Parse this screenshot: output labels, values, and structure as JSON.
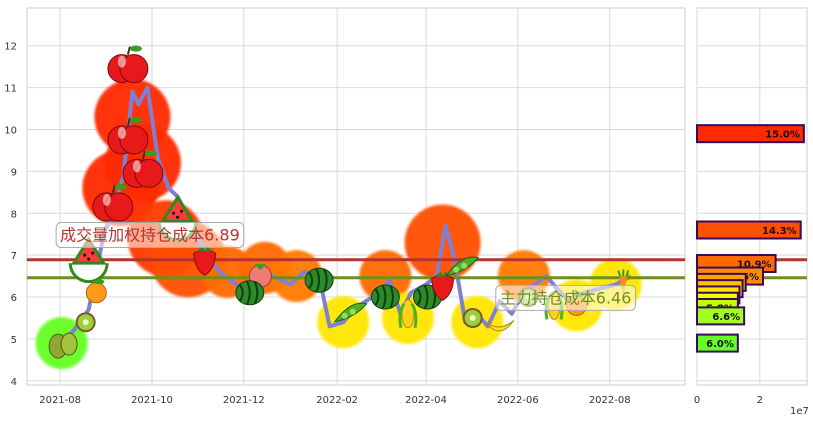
{
  "chart_data": [
    {
      "type": "line",
      "panel": "price",
      "y_ticks": [
        4,
        5,
        6,
        7,
        8,
        9,
        10,
        11,
        12
      ],
      "ylim": [
        3.9,
        12.9
      ],
      "x_ticks": [
        "2021-08",
        "2021-10",
        "2021-12",
        "2022-02",
        "2022-04",
        "2022-06",
        "2022-08"
      ],
      "xlim": [
        "2021-07-10",
        "2022-09-20"
      ],
      "grid": true,
      "series": [
        {
          "color": "#8080d0",
          "points": [
            [
              "2021-08-01",
              4.9
            ],
            [
              "2021-08-10",
              5.2
            ],
            [
              "2021-08-20",
              5.7
            ],
            [
              "2021-08-30",
              7.5
            ],
            [
              "2021-09-05",
              8.0
            ],
            [
              "2021-09-12",
              8.9
            ],
            [
              "2021-09-18",
              10.9
            ],
            [
              "2021-09-22",
              10.6
            ],
            [
              "2021-09-28",
              11.0
            ],
            [
              "2021-10-05",
              9.3
            ],
            [
              "2021-10-12",
              8.6
            ],
            [
              "2021-10-18",
              8.4
            ],
            [
              "2021-10-25",
              7.9
            ],
            [
              "2021-11-01",
              7.4
            ],
            [
              "2021-11-08",
              6.9
            ],
            [
              "2021-11-15",
              6.6
            ],
            [
              "2021-11-22",
              6.4
            ],
            [
              "2021-12-01",
              6.2
            ],
            [
              "2021-12-10",
              6.4
            ],
            [
              "2021-12-20",
              6.5
            ],
            [
              "2022-01-01",
              6.3
            ],
            [
              "2022-01-10",
              6.6
            ],
            [
              "2022-01-20",
              6.5
            ],
            [
              "2022-01-27",
              5.3
            ],
            [
              "2022-02-05",
              5.4
            ],
            [
              "2022-02-12",
              5.7
            ],
            [
              "2022-02-20",
              5.9
            ],
            [
              "2022-03-01",
              6.1
            ],
            [
              "2022-03-08",
              6.4
            ],
            [
              "2022-03-15",
              5.6
            ],
            [
              "2022-03-22",
              6.1
            ],
            [
              "2022-04-01",
              6.3
            ],
            [
              "2022-04-08",
              6.5
            ],
            [
              "2022-04-14",
              7.7
            ],
            [
              "2022-04-20",
              6.9
            ],
            [
              "2022-04-27",
              5.4
            ],
            [
              "2022-05-05",
              5.6
            ],
            [
              "2022-05-12",
              5.3
            ],
            [
              "2022-05-20",
              5.9
            ],
            [
              "2022-05-28",
              5.6
            ],
            [
              "2022-06-05",
              6.1
            ],
            [
              "2022-06-12",
              6.3
            ],
            [
              "2022-06-20",
              6.5
            ],
            [
              "2022-06-27",
              6.2
            ],
            [
              "2022-07-05",
              5.9
            ],
            [
              "2022-07-15",
              6.1
            ],
            [
              "2022-07-25",
              6.2
            ],
            [
              "2022-08-05",
              6.3
            ],
            [
              "2022-08-15",
              6.5
            ]
          ]
        }
      ],
      "hlines": [
        {
          "value": 6.89,
          "color": "#b5342c"
        },
        {
          "value": 6.46,
          "color": "#6f8f1c"
        }
      ],
      "annotations": [
        {
          "text": "成交量加权持仓成本6.89",
          "x": "2021-08-01",
          "y": 7.35,
          "color": "#b5342c"
        },
        {
          "text": "主力持仓成本6.46",
          "x": "2022-05-20",
          "y": 5.85,
          "color": "#6f8f1c"
        }
      ],
      "blobs": [
        {
          "date": "2021-09-18",
          "price": 10.3,
          "color": "#ff2a00"
        },
        {
          "date": "2021-09-10",
          "price": 8.6,
          "color": "#ff2a00"
        },
        {
          "date": "2021-09-25",
          "price": 9.2,
          "color": "#ff2a00"
        },
        {
          "date": "2021-10-10",
          "price": 7.4,
          "color": "#ff3a00"
        },
        {
          "date": "2021-10-25",
          "price": 6.9,
          "color": "#ff4f00"
        },
        {
          "date": "2021-11-20",
          "price": 6.6,
          "color": "#ff6a00"
        },
        {
          "date": "2021-12-15",
          "price": 6.7,
          "color": "#ff6a00"
        },
        {
          "date": "2022-01-05",
          "price": 6.5,
          "color": "#ff7a00"
        },
        {
          "date": "2022-03-05",
          "price": 6.5,
          "color": "#ff6a00"
        },
        {
          "date": "2022-04-12",
          "price": 7.3,
          "color": "#ff4f00"
        },
        {
          "date": "2022-06-05",
          "price": 6.5,
          "color": "#ff7a00"
        },
        {
          "date": "2021-08-02",
          "price": 4.9,
          "color": "#66ff22"
        },
        {
          "date": "2022-02-05",
          "price": 5.4,
          "color": "#ffe600"
        },
        {
          "date": "2022-03-20",
          "price": 5.5,
          "color": "#ffe600"
        },
        {
          "date": "2022-05-05",
          "price": 5.4,
          "color": "#ffe600"
        },
        {
          "date": "2022-07-10",
          "price": 5.8,
          "color": "#ffe600"
        },
        {
          "date": "2022-08-05",
          "price": 6.3,
          "color": "#ffe600"
        }
      ],
      "fruits": [
        {
          "kind": "apple",
          "date": "2021-09-15",
          "price": 11.5
        },
        {
          "kind": "apple",
          "date": "2021-09-15",
          "price": 9.8
        },
        {
          "kind": "apple",
          "date": "2021-09-25",
          "price": 9.0
        },
        {
          "kind": "apple",
          "date": "2021-09-05",
          "price": 8.2
        },
        {
          "kind": "watermelon-slice",
          "date": "2021-10-18",
          "price": 8.0
        },
        {
          "kind": "watermelon-slice",
          "date": "2021-08-20",
          "price": 7.0
        },
        {
          "kind": "strawberry",
          "date": "2021-11-05",
          "price": 6.9
        },
        {
          "kind": "orange",
          "date": "2021-08-25",
          "price": 6.1
        },
        {
          "kind": "pear",
          "date": "2021-08-03",
          "price": 4.9
        },
        {
          "kind": "kiwi",
          "date": "2021-08-18",
          "price": 5.4
        },
        {
          "kind": "peach",
          "date": "2021-12-12",
          "price": 6.5
        },
        {
          "kind": "watermelon",
          "date": "2021-12-05",
          "price": 6.1
        },
        {
          "kind": "watermelon",
          "date": "2022-01-20",
          "price": 6.4
        },
        {
          "kind": "pea-pod",
          "date": "2022-02-10",
          "price": 5.6
        },
        {
          "kind": "watermelon",
          "date": "2022-03-05",
          "price": 6.0
        },
        {
          "kind": "corn",
          "date": "2022-03-20",
          "price": 5.6
        },
        {
          "kind": "watermelon",
          "date": "2022-04-02",
          "price": 6.0
        },
        {
          "kind": "strawberry",
          "date": "2022-04-12",
          "price": 6.3
        },
        {
          "kind": "pea-pod",
          "date": "2022-04-25",
          "price": 6.7
        },
        {
          "kind": "kiwi",
          "date": "2022-05-02",
          "price": 5.5
        },
        {
          "kind": "banana",
          "date": "2022-05-20",
          "price": 5.3
        },
        {
          "kind": "kiwi",
          "date": "2022-06-08",
          "price": 6.0
        },
        {
          "kind": "corn",
          "date": "2022-06-25",
          "price": 5.8
        },
        {
          "kind": "orange",
          "date": "2022-07-10",
          "price": 5.8
        },
        {
          "kind": "carrot",
          "date": "2022-08-10",
          "price": 6.3
        }
      ]
    },
    {
      "type": "bar",
      "panel": "volume-distribution",
      "orientation": "horizontal",
      "x_ticks": [
        "0",
        "2"
      ],
      "xlim": [
        0,
        3.5
      ],
      "x_scale_label": "1e7",
      "bars": [
        {
          "price": 9.9,
          "value": 3.4,
          "label": "15.0%",
          "color": "#ff2a00"
        },
        {
          "price": 7.6,
          "value": 3.3,
          "label": "14.3%",
          "color": "#ff4f00"
        },
        {
          "price": 6.8,
          "value": 2.5,
          "label": "10.9%",
          "color": "#ff6a00"
        },
        {
          "price": 6.5,
          "value": 2.1,
          "label": "9.6%",
          "color": "#ff8c00"
        },
        {
          "price": 6.35,
          "value": 1.55,
          "label": "6.9%",
          "color": "#ffa500"
        },
        {
          "price": 6.2,
          "value": 1.45,
          "label": "6.4%",
          "color": "#ffc000"
        },
        {
          "price": 6.05,
          "value": 1.35,
          "label": "6.3%",
          "color": "#ffe600"
        },
        {
          "price": 5.9,
          "value": 1.3,
          "label": "5.9%",
          "color": "#f0ff00"
        },
        {
          "price": 5.75,
          "value": 1.3,
          "label": "5.8%",
          "color": "#bfff00"
        },
        {
          "price": 5.55,
          "value": 1.5,
          "label": "6.6%",
          "color": "#a0ff20"
        },
        {
          "price": 4.9,
          "value": 1.3,
          "label": "6.0%",
          "color": "#66ff22"
        }
      ]
    }
  ]
}
